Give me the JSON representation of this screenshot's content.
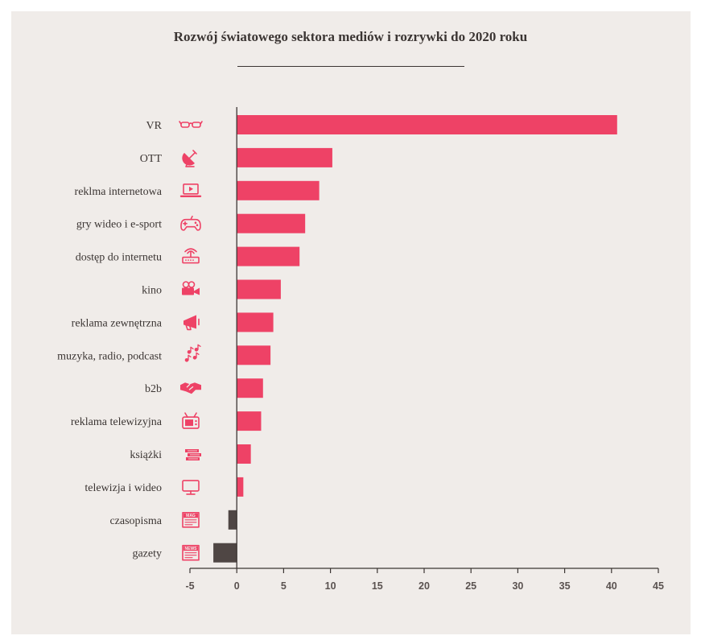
{
  "chart_data": {
    "type": "bar",
    "orientation": "horizontal",
    "title": "Rozwój światowego sektora mediów i rozrywki do 2020 roku",
    "categories": [
      "VR",
      "OTT",
      "reklma internetowa",
      "gry wideo i e-sport",
      "dostęp do internetu",
      "kino",
      "reklama zewnętrzna",
      "muzyka, radio, podcast",
      "b2b",
      "reklama telewizyjna",
      "książki",
      "telewizja i wideo",
      "czasopisma",
      "gazety"
    ],
    "icons": [
      "vr-glasses-icon",
      "satellite-dish-icon",
      "laptop-play-icon",
      "gamepad-icon",
      "router-icon",
      "film-camera-icon",
      "megaphone-icon",
      "music-notes-icon",
      "handshake-icon",
      "tv-icon",
      "books-icon",
      "monitor-icon",
      "magazine-icon",
      "newspaper-icon"
    ],
    "icon_texts": {
      "magazine-icon": "MAG",
      "newspaper-icon": "NEWS"
    },
    "values": [
      40.6,
      10.2,
      8.8,
      7.3,
      6.7,
      4.7,
      3.9,
      3.6,
      2.8,
      2.6,
      1.5,
      0.7,
      -0.9,
      -2.5
    ],
    "xlim": [
      -5,
      45
    ],
    "xticks": [
      "-5",
      "0",
      "5",
      "10",
      "15",
      "20",
      "25",
      "30",
      "35",
      "40",
      "45"
    ],
    "xlabel": "",
    "ylabel": "",
    "colors": {
      "positive": "#ee4266",
      "negative": "#4f4644",
      "icon": "#ee4266",
      "axis": "#3b3533"
    }
  }
}
